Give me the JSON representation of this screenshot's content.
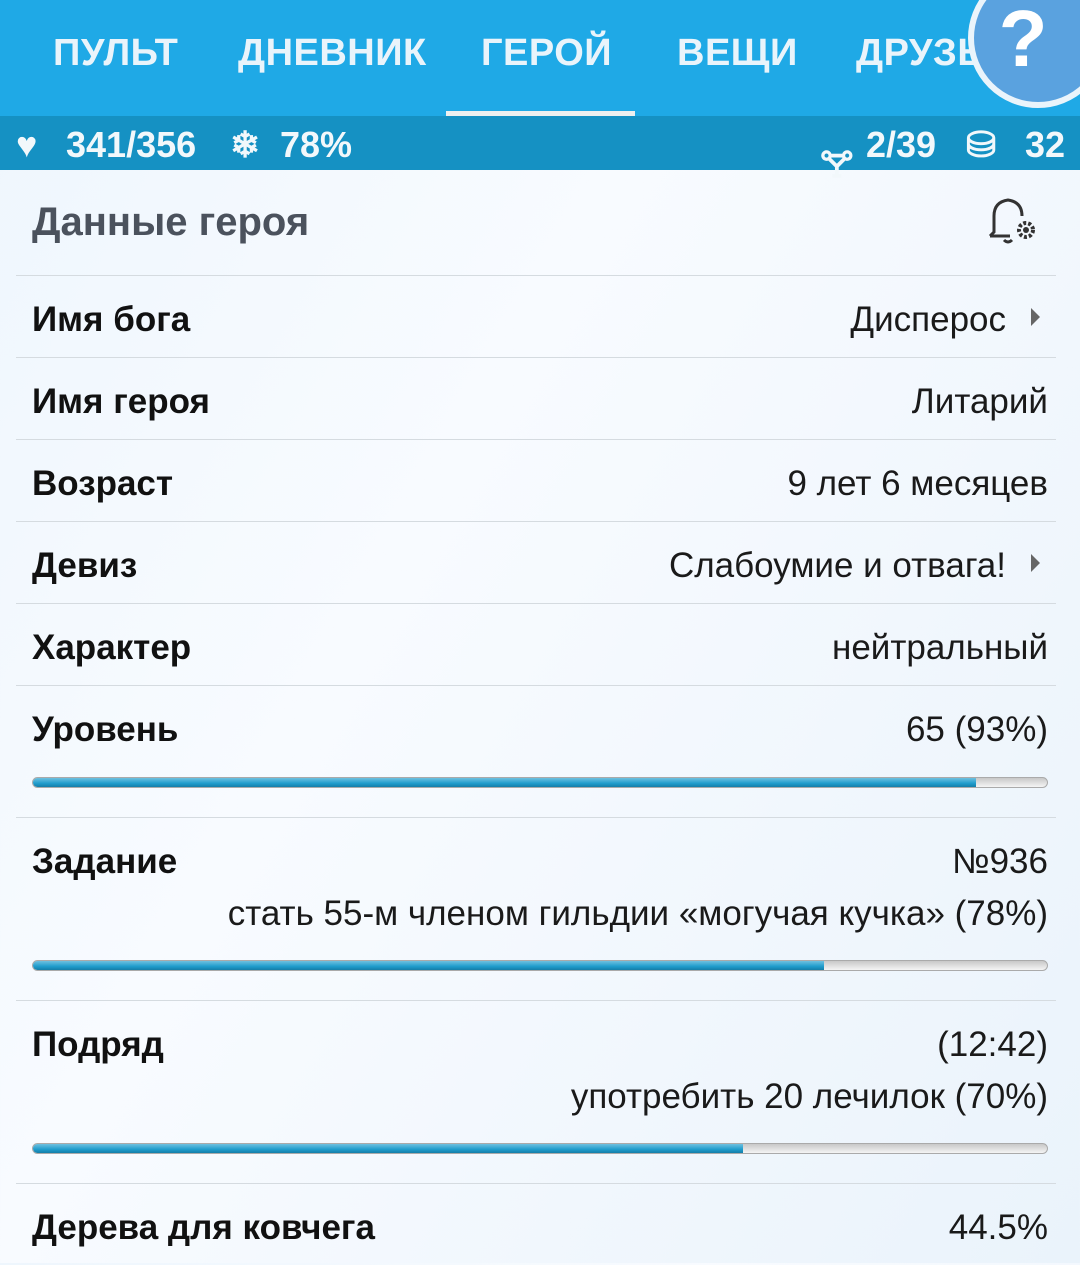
{
  "tabs": [
    "ПУЛЬТ",
    "ДНЕВНИК",
    "ГЕРОЙ",
    "ВЕЩИ",
    "ДРУЗЬЯ"
  ],
  "active_tab": "ГЕРОЙ",
  "help_label": "?",
  "stats": {
    "health": "341/356",
    "godpower": "78%",
    "inventory": "2/39",
    "gold": "32"
  },
  "header": {
    "title": "Данные героя"
  },
  "rows": [
    {
      "label": "Имя бога",
      "value": "Дисперос"
    },
    {
      "label": "Имя героя",
      "value": "Литарий"
    },
    {
      "label": "Возраст",
      "value": "9 лет 6 месяцев"
    },
    {
      "label": "Девиз",
      "value": "Слабоумие и отвага!"
    },
    {
      "label": "Характер",
      "value": "нейтральный"
    }
  ],
  "level": {
    "label": "Уровень",
    "value": "65 (93%)",
    "progress": 93
  },
  "quest": {
    "label": "Задание",
    "number": "№936",
    "text": "стать 55-м членом гильдии «могучая кучка» (78%)",
    "progress": 78
  },
  "job": {
    "label": "Подряд",
    "time": "(12:42)",
    "text": "употребить 20 лечилок (70%)",
    "progress": 70
  },
  "ark": {
    "label": "Дерева для ковчега",
    "value": "44.5%"
  },
  "colors": {
    "tabbar": "#1fa9e6",
    "statbar": "#1591c3",
    "progress": "#1f9ccc"
  }
}
